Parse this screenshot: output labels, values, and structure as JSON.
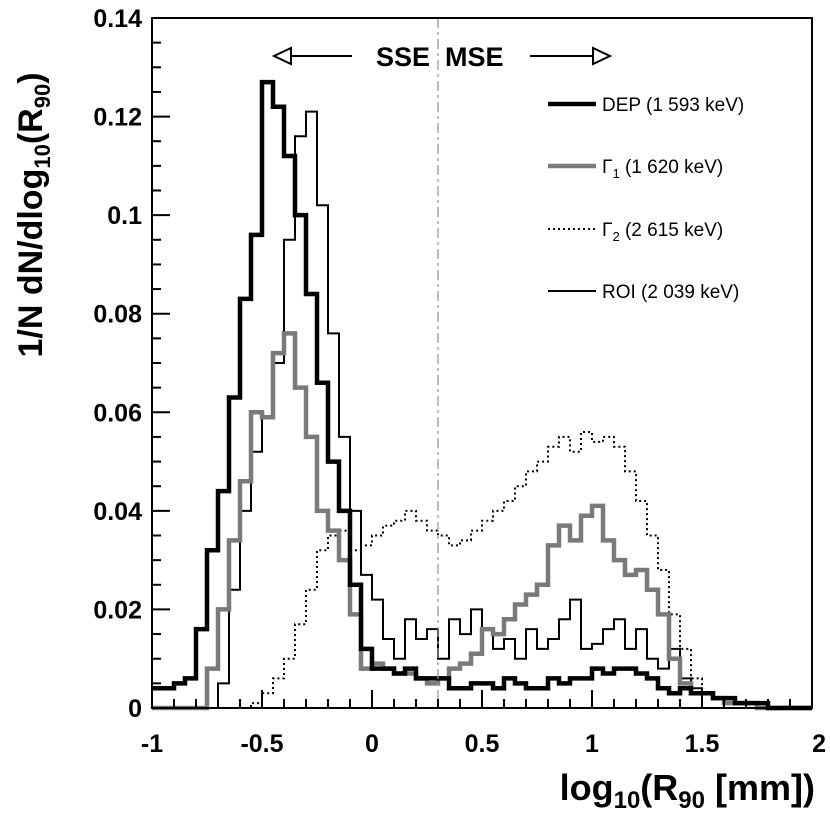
{
  "chart_data": {
    "type": "line",
    "xlabel": "log10(R90 [mm])",
    "ylabel": "1/N dN/dlog10(R90)",
    "xlim": [
      -1,
      2
    ],
    "ylim": [
      0,
      0.14
    ],
    "x_ticks": [
      "-1",
      "-0.5",
      "0",
      "0.5",
      "1",
      "1.5",
      "2"
    ],
    "y_ticks": [
      "0",
      "0.02",
      "0.04",
      "0.06",
      "0.08",
      "0.1",
      "0.12",
      "0.14"
    ],
    "grid": false,
    "legend_position": "top-right",
    "bin_width": 0.05,
    "divider": {
      "x": 0.3,
      "left_label": "SSE",
      "right_label": "MSE"
    },
    "series": [
      {
        "name": "DEP (1 593 keV)",
        "style": "thick-solid-black",
        "x_start": -1.0,
        "values": [
          0.004,
          0.004,
          0.005,
          0.006,
          0.016,
          0.032,
          0.044,
          0.063,
          0.083,
          0.096,
          0.127,
          0.122,
          0.112,
          0.1,
          0.084,
          0.066,
          0.05,
          0.04,
          0.025,
          0.012,
          0.008,
          0.008,
          0.007,
          0.008,
          0.006,
          0.006,
          0.006,
          0.004,
          0.004,
          0.005,
          0.005,
          0.004,
          0.006,
          0.005,
          0.004,
          0.004,
          0.006,
          0.005,
          0.006,
          0.006,
          0.008,
          0.007,
          0.008,
          0.008,
          0.007,
          0.006,
          0.004,
          0.003,
          0.004,
          0.003,
          0.003,
          0.002,
          0.002,
          0.001,
          0.001,
          0.001,
          0.0,
          0.0,
          0.0,
          0.0
        ]
      },
      {
        "name": "Γ1 (1 620 keV)",
        "style": "thick-solid-gray",
        "x_start": -1.0,
        "values": [
          0.0,
          0.0,
          0.0,
          0.0,
          0.0,
          0.008,
          0.02,
          0.034,
          0.046,
          0.06,
          0.059,
          0.072,
          0.076,
          0.065,
          0.055,
          0.04,
          0.036,
          0.03,
          0.019,
          0.008,
          0.009,
          0.008,
          0.007,
          0.007,
          0.006,
          0.005,
          0.006,
          0.008,
          0.009,
          0.011,
          0.016,
          0.015,
          0.018,
          0.021,
          0.023,
          0.025,
          0.033,
          0.037,
          0.034,
          0.039,
          0.041,
          0.034,
          0.03,
          0.027,
          0.028,
          0.024,
          0.019,
          0.01,
          0.005,
          0.003,
          0.003,
          0.002,
          0.001,
          0.001,
          0.001,
          0.0,
          0.0,
          0.0,
          0.0,
          0.0
        ]
      },
      {
        "name": "Γ2 (2 615 keV)",
        "style": "dotted-black",
        "x_start": -1.0,
        "values": [
          0.0,
          0.0,
          0.0,
          0.0,
          0.0,
          0.0,
          0.0,
          0.0,
          0.0,
          0.001,
          0.003,
          0.006,
          0.01,
          0.017,
          0.024,
          0.032,
          0.035,
          0.036,
          0.032,
          0.033,
          0.035,
          0.037,
          0.038,
          0.04,
          0.038,
          0.036,
          0.035,
          0.033,
          0.034,
          0.036,
          0.038,
          0.04,
          0.042,
          0.045,
          0.048,
          0.05,
          0.053,
          0.055,
          0.052,
          0.056,
          0.054,
          0.055,
          0.053,
          0.048,
          0.042,
          0.035,
          0.028,
          0.019,
          0.012,
          0.006,
          0.003,
          0.002,
          0.001,
          0.001,
          0.0,
          0.0,
          0.0,
          0.0,
          0.0,
          0.0
        ]
      },
      {
        "name": "ROI (2 039 keV)",
        "style": "thin-solid-black",
        "x_start": -1.0,
        "values": [
          0.0,
          0.0,
          0.0,
          0.0,
          0.0,
          0.0,
          0.005,
          0.024,
          0.04,
          0.052,
          0.059,
          0.07,
          0.095,
          0.116,
          0.121,
          0.102,
          0.076,
          0.055,
          0.04,
          0.027,
          0.022,
          0.014,
          0.01,
          0.018,
          0.014,
          0.016,
          0.01,
          0.018,
          0.015,
          0.02,
          0.016,
          0.012,
          0.014,
          0.01,
          0.016,
          0.012,
          0.014,
          0.018,
          0.022,
          0.012,
          0.013,
          0.016,
          0.018,
          0.012,
          0.016,
          0.01,
          0.008,
          0.012,
          0.006,
          0.004,
          0.003,
          0.002,
          0.001,
          0.001,
          0.0,
          0.0,
          0.0,
          0.0,
          0.0,
          0.0
        ]
      }
    ]
  }
}
